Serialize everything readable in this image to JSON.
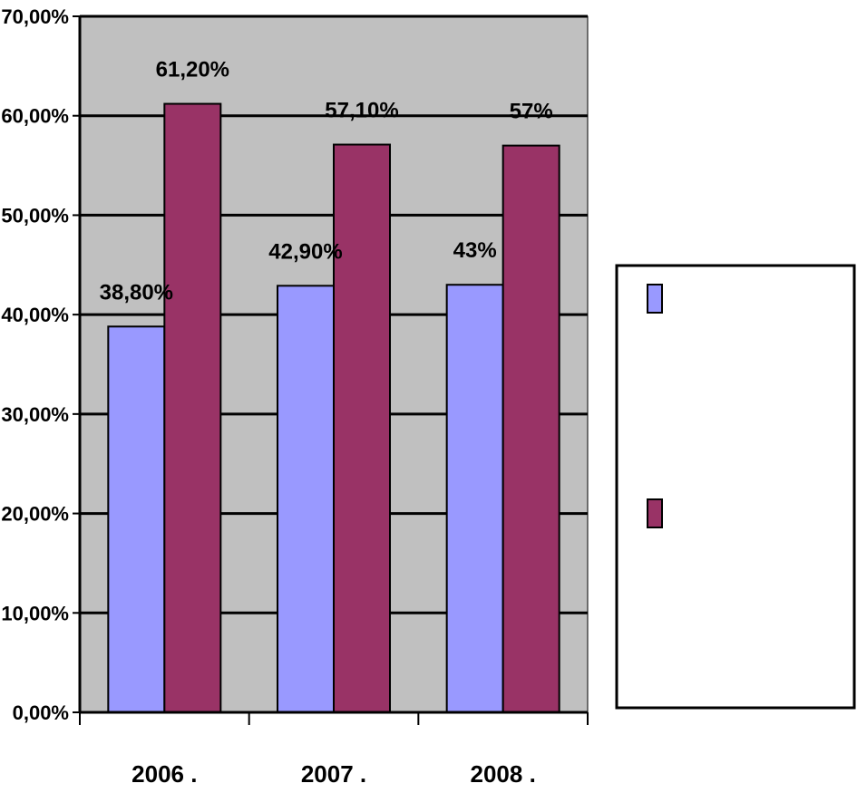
{
  "chart_data": {
    "type": "bar",
    "categories": [
      "2006 .",
      "2007 .",
      "2008 ."
    ],
    "series": [
      {
        "values": [
          38.8,
          42.9,
          43.0
        ],
        "labels": [
          "38,80%",
          "42,90%",
          "43%"
        ]
      },
      {
        "values": [
          61.2,
          57.1,
          57.0
        ],
        "labels": [
          "61,20%",
          "57,10%",
          "57%"
        ]
      }
    ],
    "ylim": [
      0,
      70
    ],
    "y_ticks": [
      {
        "value": 0,
        "label": "0,00%"
      },
      {
        "value": 10,
        "label": "10,00%"
      },
      {
        "value": 20,
        "label": "20,00%"
      },
      {
        "value": 30,
        "label": "30,00%"
      },
      {
        "value": 40,
        "label": "40,00%"
      },
      {
        "value": 50,
        "label": "50,00%"
      },
      {
        "value": 60,
        "label": "60,00%"
      },
      {
        "value": 70,
        "label": "70,00%"
      }
    ],
    "grid": true,
    "legend": "right",
    "colors": {
      "plot_background": "#c0c0c0",
      "series_0": "#9999ff",
      "series_1": "#993366",
      "gridline": "#000000"
    }
  }
}
